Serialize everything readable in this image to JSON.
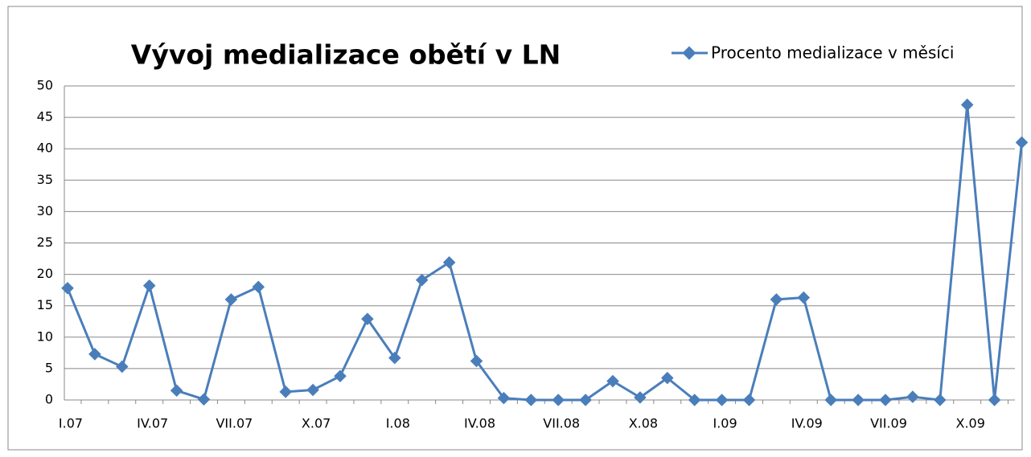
{
  "chart_data": {
    "type": "line",
    "title": "Vývoj medializace obětí v LN",
    "categories": [
      "I.07",
      null,
      null,
      "IV.07",
      null,
      null,
      "VII.07",
      null,
      null,
      "X.07",
      null,
      null,
      "I.08",
      null,
      null,
      "IV.08",
      null,
      null,
      "VII.08",
      null,
      null,
      "X.08",
      null,
      null,
      "I.09",
      null,
      null,
      "IV.09",
      null,
      null,
      "VII.09",
      null,
      null,
      "X.09",
      null,
      null
    ],
    "series": [
      {
        "name": "Procento medializace v měsíci",
        "color": "#4a7ebb",
        "values": [
          17.8,
          7.3,
          5.3,
          18.2,
          1.5,
          0.1,
          16,
          18,
          1.3,
          1.6,
          3.8,
          12.9,
          6.7,
          19.1,
          21.9,
          6.2,
          0.3,
          0,
          0,
          0,
          3,
          0.4,
          3.5,
          0,
          0,
          0,
          16,
          16.3,
          0,
          0,
          0,
          0.5,
          0,
          47,
          0,
          41
        ]
      }
    ],
    "ylim": [
      0,
      50
    ],
    "yticks": [
      0,
      5,
      10,
      15,
      20,
      25,
      30,
      35,
      40,
      45,
      50
    ],
    "grid": true,
    "legend": "top-right"
  }
}
